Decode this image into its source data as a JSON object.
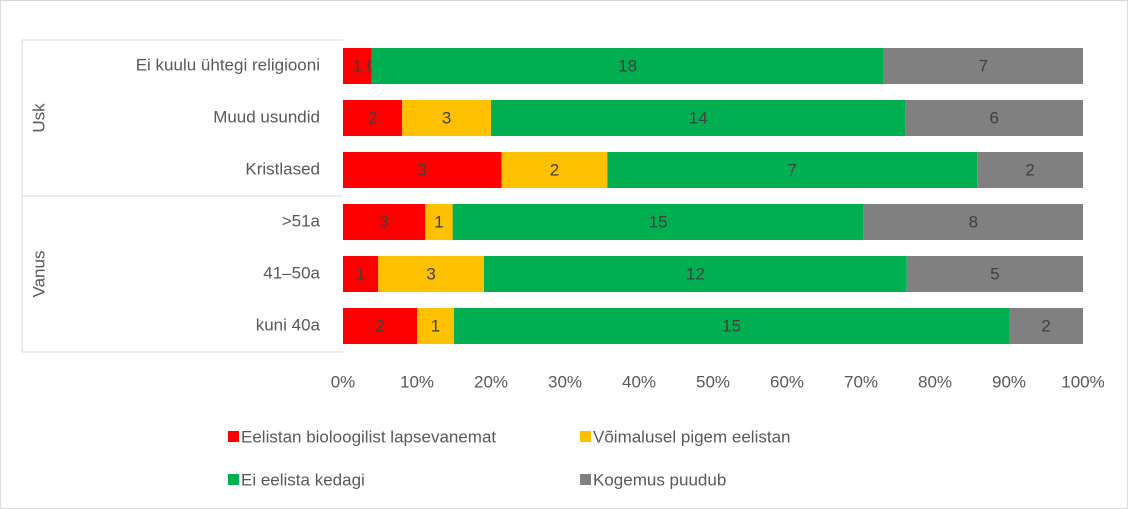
{
  "chart_data": {
    "type": "bar",
    "orientation": "horizontal",
    "stacking": "percent",
    "categories": [
      "Ei kuulu ühtegi religiooni",
      "Muud usundid",
      "Kristlased",
      ">51a",
      "41–50a",
      "kuni 40a"
    ],
    "category_groups": [
      {
        "label": "Usk",
        "count": 3
      },
      {
        "label": "Vanus",
        "count": 3
      }
    ],
    "series": [
      {
        "name": "Eelistan bioloogilist lapsevanemat",
        "color": "#ff0000",
        "values": [
          1,
          2,
          3,
          3,
          1,
          2
        ]
      },
      {
        "name": "Võimalusel pigem eelistan",
        "color": "#ffc000",
        "values": [
          0,
          3,
          2,
          1,
          3,
          1
        ]
      },
      {
        "name": "Ei eelista kedagi",
        "color": "#00b050",
        "values": [
          18,
          14,
          7,
          15,
          12,
          15
        ]
      },
      {
        "name": "Kogemus puudub",
        "color": "#808080",
        "values": [
          7,
          6,
          2,
          8,
          5,
          2
        ]
      }
    ],
    "xlim": [
      0,
      100
    ],
    "xticks": [
      {
        "value": 0,
        "label": "0%"
      },
      {
        "value": 10,
        "label": "10%"
      },
      {
        "value": 20,
        "label": "20%"
      },
      {
        "value": 30,
        "label": "30%"
      },
      {
        "value": 40,
        "label": "40%"
      },
      {
        "value": 50,
        "label": "50%"
      },
      {
        "value": 60,
        "label": "60%"
      },
      {
        "value": 70,
        "label": "70%"
      },
      {
        "value": 80,
        "label": "80%"
      },
      {
        "value": 90,
        "label": "90%"
      },
      {
        "value": 100,
        "label": "100%"
      }
    ],
    "grid": false,
    "legend": "bottom"
  }
}
